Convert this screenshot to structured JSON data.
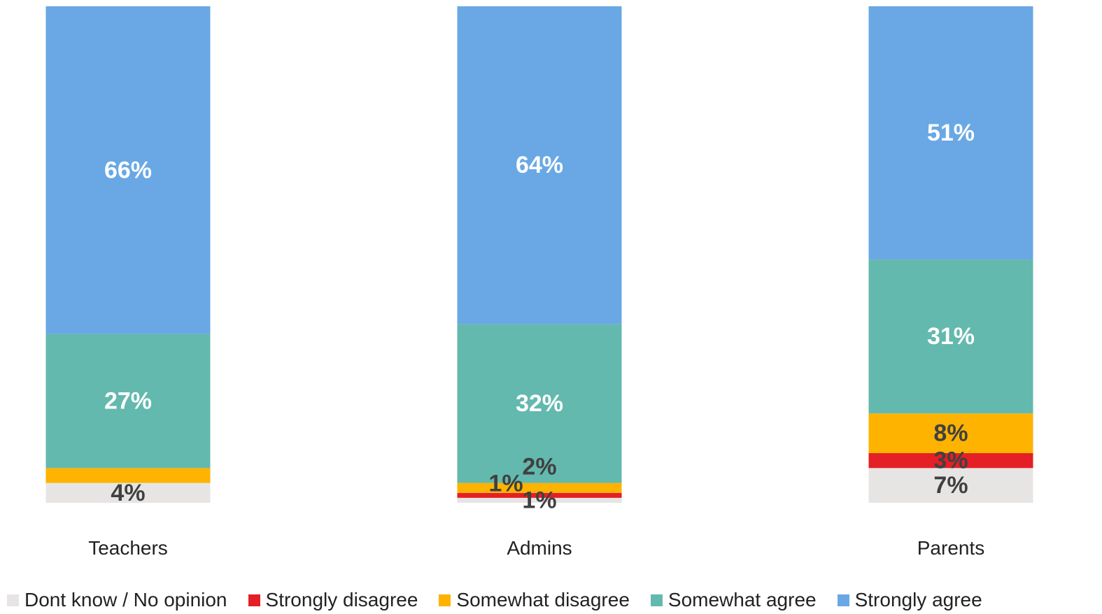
{
  "chart_data": {
    "type": "bar",
    "stacked": true,
    "title": "",
    "xlabel": "",
    "ylabel": "",
    "ylim": [
      0,
      100
    ],
    "grid": false,
    "legend_position": "bottom",
    "categories": [
      "Teachers",
      "Admins",
      "Parents"
    ],
    "series": [
      {
        "name": "Dont know / No opinion",
        "color": "#e7e5e4",
        "label_color": "#404040",
        "values": [
          4,
          1,
          7
        ],
        "labels": [
          "4%",
          "1%",
          "7%"
        ]
      },
      {
        "name": "Strongly disagree",
        "color": "#e41f26",
        "label_color": "#404040",
        "values": [
          0,
          1,
          3
        ],
        "labels": [
          "",
          "1%",
          "3%"
        ]
      },
      {
        "name": "Somewhat disagree",
        "color": "#fdb300",
        "label_color": "#404040",
        "values": [
          3,
          2,
          8
        ],
        "labels": [
          "",
          "2%",
          "8%"
        ]
      },
      {
        "name": "Somewhat agree",
        "color": "#63b9ae",
        "label_color": "#ffffff",
        "values": [
          27,
          32,
          31
        ],
        "labels": [
          "27%",
          "32%",
          "31%"
        ]
      },
      {
        "name": "Strongly agree",
        "color": "#69a8e4",
        "label_color": "#ffffff",
        "values": [
          66,
          64,
          51
        ],
        "labels": [
          "66%",
          "64%",
          "51%"
        ]
      }
    ]
  }
}
